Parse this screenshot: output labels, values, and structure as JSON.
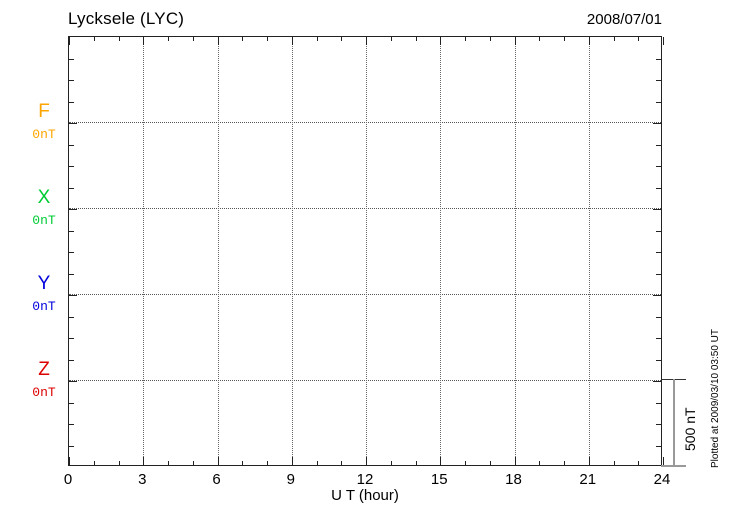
{
  "header": {
    "title": "Lycksele (LYC)",
    "date": "2008/07/01"
  },
  "chart_data": {
    "type": "line",
    "title": "Lycksele (LYC)",
    "date": "2008/07/01",
    "xlabel": "U T (hour)",
    "x_range": [
      0,
      24
    ],
    "x_major_ticks": [
      0,
      3,
      6,
      9,
      12,
      15,
      18,
      21,
      24
    ],
    "x_minor_step_hours": 1,
    "grid": "dotted",
    "channels": [
      {
        "name": "F",
        "baseline_label": "0nT",
        "color": "#FFA500",
        "values": []
      },
      {
        "name": "X",
        "baseline_label": "0nT",
        "color": "#00CC33",
        "values": []
      },
      {
        "name": "Y",
        "baseline_label": "0nT",
        "color": "#0000DD",
        "values": []
      },
      {
        "name": "Z",
        "baseline_label": "0nT",
        "color": "#DD0000",
        "values": []
      }
    ],
    "scale_bar": {
      "label": "500 nT",
      "nT": 500
    },
    "plotted_at": "Plotted at 2009/03/10 03:50 UT"
  }
}
